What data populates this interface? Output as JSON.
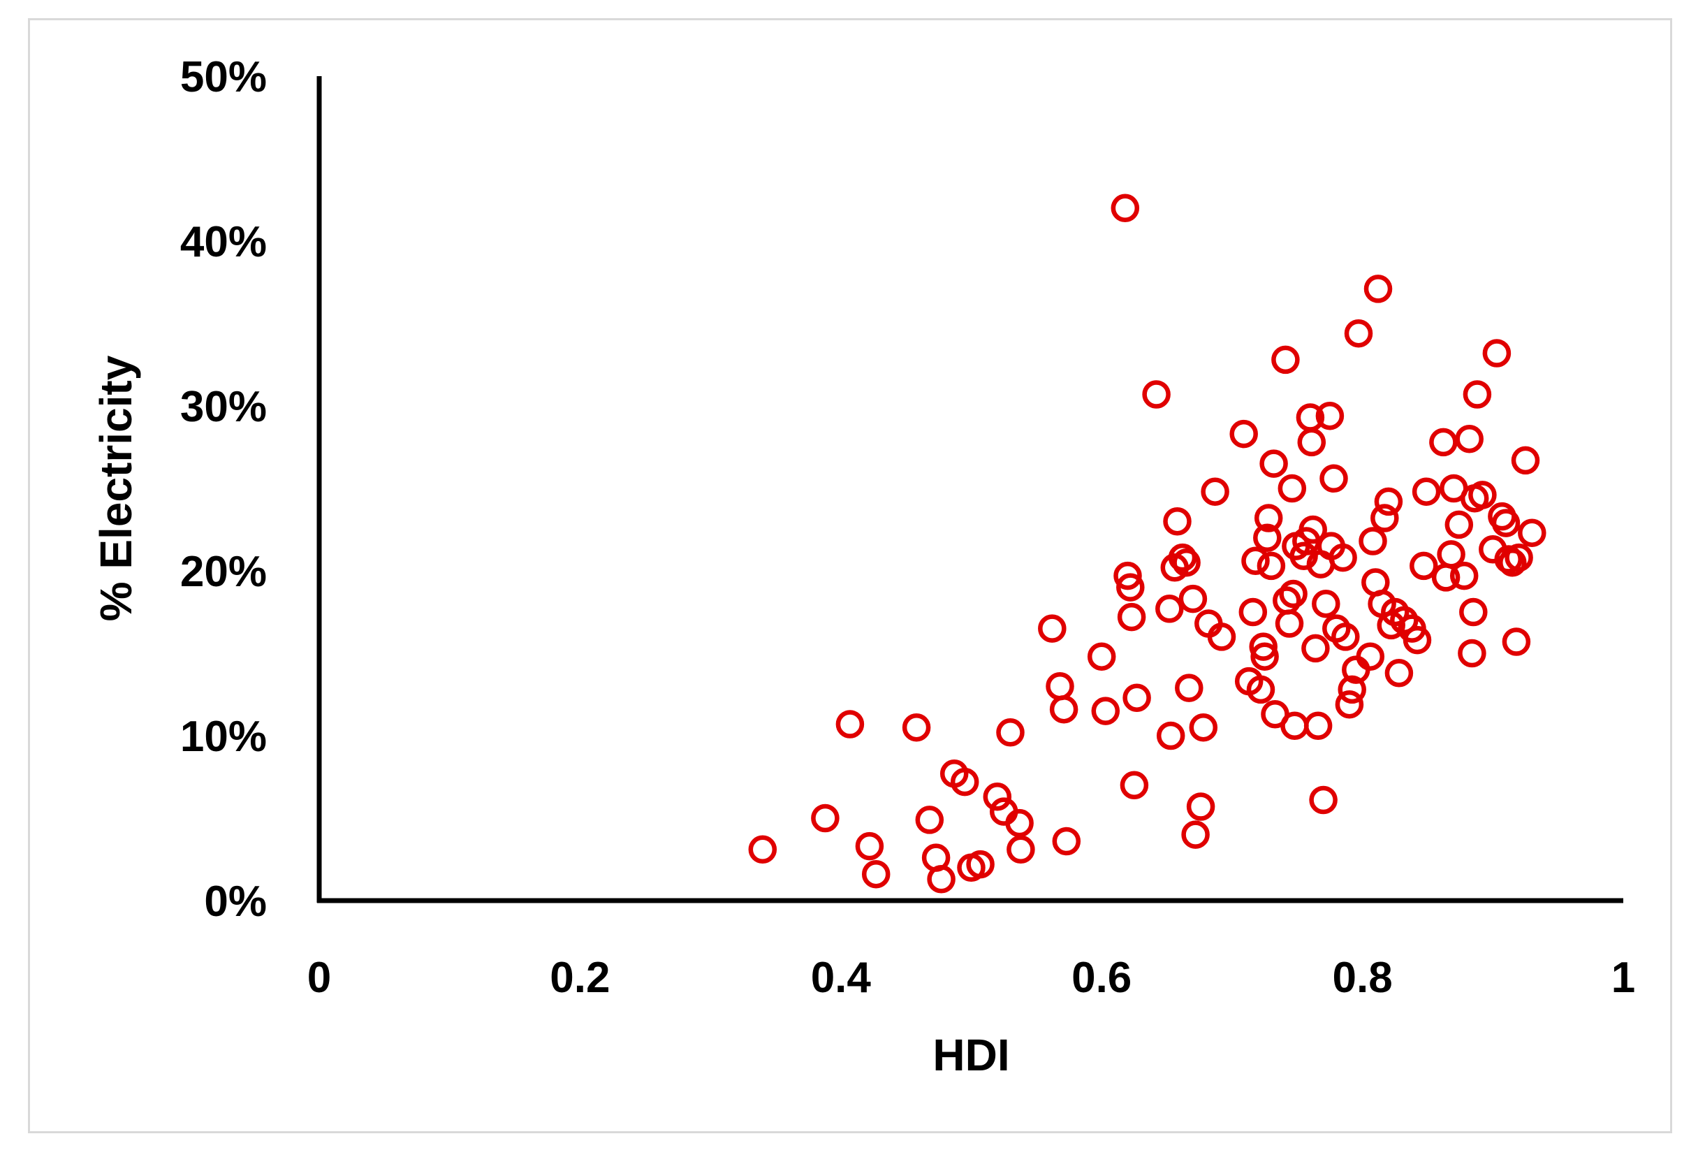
{
  "chart_data": {
    "type": "scatter",
    "title": "",
    "xlabel": "HDI",
    "ylabel": "% Electricity",
    "xlim": [
      0,
      1
    ],
    "ylim": [
      0,
      0.5
    ],
    "x_ticks": [
      {
        "value": 0,
        "label": "0"
      },
      {
        "value": 0.2,
        "label": "0.2"
      },
      {
        "value": 0.4,
        "label": "0.4"
      },
      {
        "value": 0.6,
        "label": "0.6"
      },
      {
        "value": 0.8,
        "label": "0.8"
      },
      {
        "value": 1,
        "label": "1"
      }
    ],
    "y_ticks": [
      {
        "value": 0,
        "label": "0%"
      },
      {
        "value": 0.1,
        "label": "10%"
      },
      {
        "value": 0.2,
        "label": "20%"
      },
      {
        "value": 0.3,
        "label": "30%"
      },
      {
        "value": 0.4,
        "label": "40%"
      },
      {
        "value": 0.5,
        "label": "50%"
      }
    ],
    "grid": false,
    "legend": "none",
    "marker": "open-circle",
    "marker_color": "#e00000",
    "series": [
      {
        "points": [
          [
            0.34,
            0.031
          ],
          [
            0.388,
            0.05
          ],
          [
            0.407,
            0.107
          ],
          [
            0.422,
            0.033
          ],
          [
            0.427,
            0.016
          ],
          [
            0.458,
            0.105
          ],
          [
            0.468,
            0.049
          ],
          [
            0.473,
            0.026
          ],
          [
            0.477,
            0.013
          ],
          [
            0.487,
            0.077
          ],
          [
            0.495,
            0.072
          ],
          [
            0.5,
            0.02
          ],
          [
            0.507,
            0.022
          ],
          [
            0.52,
            0.063
          ],
          [
            0.525,
            0.054
          ],
          [
            0.53,
            0.102
          ],
          [
            0.537,
            0.047
          ],
          [
            0.538,
            0.031
          ],
          [
            0.562,
            0.165
          ],
          [
            0.568,
            0.13
          ],
          [
            0.571,
            0.116
          ],
          [
            0.573,
            0.036
          ],
          [
            0.6,
            0.148
          ],
          [
            0.603,
            0.115
          ],
          [
            0.618,
            0.42
          ],
          [
            0.62,
            0.197
          ],
          [
            0.622,
            0.19
          ],
          [
            0.623,
            0.172
          ],
          [
            0.625,
            0.07
          ],
          [
            0.627,
            0.123
          ],
          [
            0.642,
            0.307
          ],
          [
            0.652,
            0.177
          ],
          [
            0.653,
            0.1
          ],
          [
            0.656,
            0.202
          ],
          [
            0.658,
            0.23
          ],
          [
            0.662,
            0.208
          ],
          [
            0.665,
            0.205
          ],
          [
            0.667,
            0.129
          ],
          [
            0.67,
            0.183
          ],
          [
            0.672,
            0.04
          ],
          [
            0.676,
            0.057
          ],
          [
            0.678,
            0.105
          ],
          [
            0.682,
            0.168
          ],
          [
            0.687,
            0.248
          ],
          [
            0.692,
            0.16
          ],
          [
            0.709,
            0.283
          ],
          [
            0.713,
            0.133
          ],
          [
            0.716,
            0.175
          ],
          [
            0.718,
            0.206
          ],
          [
            0.722,
            0.128
          ],
          [
            0.724,
            0.154
          ],
          [
            0.725,
            0.148
          ],
          [
            0.727,
            0.22
          ],
          [
            0.728,
            0.232
          ],
          [
            0.73,
            0.203
          ],
          [
            0.732,
            0.265
          ],
          [
            0.733,
            0.113
          ],
          [
            0.741,
            0.328
          ],
          [
            0.742,
            0.182
          ],
          [
            0.744,
            0.168
          ],
          [
            0.746,
            0.25
          ],
          [
            0.747,
            0.186
          ],
          [
            0.748,
            0.106
          ],
          [
            0.749,
            0.215
          ],
          [
            0.755,
            0.209
          ],
          [
            0.757,
            0.218
          ],
          [
            0.76,
            0.293
          ],
          [
            0.761,
            0.278
          ],
          [
            0.762,
            0.225
          ],
          [
            0.764,
            0.153
          ],
          [
            0.766,
            0.106
          ],
          [
            0.768,
            0.204
          ],
          [
            0.77,
            0.061
          ],
          [
            0.772,
            0.18
          ],
          [
            0.775,
            0.294
          ],
          [
            0.776,
            0.215
          ],
          [
            0.778,
            0.256
          ],
          [
            0.78,
            0.165
          ],
          [
            0.785,
            0.208
          ],
          [
            0.787,
            0.16
          ],
          [
            0.79,
            0.119
          ],
          [
            0.792,
            0.128
          ],
          [
            0.795,
            0.14
          ],
          [
            0.797,
            0.344
          ],
          [
            0.806,
            0.148
          ],
          [
            0.808,
            0.218
          ],
          [
            0.81,
            0.193
          ],
          [
            0.812,
            0.371
          ],
          [
            0.815,
            0.18
          ],
          [
            0.817,
            0.232
          ],
          [
            0.82,
            0.242
          ],
          [
            0.822,
            0.167
          ],
          [
            0.825,
            0.175
          ],
          [
            0.828,
            0.138
          ],
          [
            0.832,
            0.17
          ],
          [
            0.838,
            0.165
          ],
          [
            0.842,
            0.158
          ],
          [
            0.847,
            0.203
          ],
          [
            0.849,
            0.248
          ],
          [
            0.862,
            0.278
          ],
          [
            0.864,
            0.196
          ],
          [
            0.868,
            0.21
          ],
          [
            0.87,
            0.25
          ],
          [
            0.874,
            0.228
          ],
          [
            0.878,
            0.197
          ],
          [
            0.882,
            0.28
          ],
          [
            0.884,
            0.15
          ],
          [
            0.885,
            0.175
          ],
          [
            0.886,
            0.244
          ],
          [
            0.888,
            0.307
          ],
          [
            0.892,
            0.246
          ],
          [
            0.9,
            0.213
          ],
          [
            0.903,
            0.332
          ],
          [
            0.907,
            0.233
          ],
          [
            0.91,
            0.229
          ],
          [
            0.912,
            0.207
          ],
          [
            0.915,
            0.205
          ],
          [
            0.918,
            0.157
          ],
          [
            0.92,
            0.208
          ],
          [
            0.925,
            0.267
          ],
          [
            0.93,
            0.223
          ]
        ]
      }
    ]
  }
}
